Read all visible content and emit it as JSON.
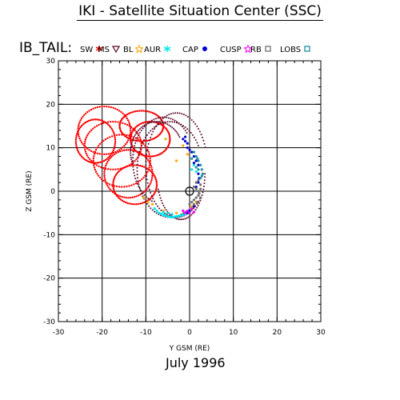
{
  "header": {
    "title": "IKI - Satellite Situation Center (SSC)"
  },
  "plot": {
    "series_label": "IB_TAIL:",
    "period_label": "July    1996"
  },
  "chart_data": {
    "type": "scatter",
    "title": "IKI - Satellite Situation Center (SSC)",
    "xlabel": "Y GSM (RE)",
    "ylabel": "Z GSM (RE)",
    "xlim": [
      -30,
      30
    ],
    "ylim": [
      -30,
      30
    ],
    "xticks": [
      "-30",
      "-20",
      "-10",
      "0",
      "10",
      "20",
      "30"
    ],
    "yticks": [
      "30",
      "20",
      "10",
      "0",
      "-10",
      "-20",
      "-30"
    ],
    "grid": true,
    "legend_placement": "top",
    "legend": [
      {
        "name": "SW",
        "marker": "asterisk",
        "color": "#ff0000"
      },
      {
        "name": "MS",
        "marker": "triangle-down",
        "color": "#5a0a2a"
      },
      {
        "name": "BL",
        "marker": "star-open",
        "color": "#ffa500"
      },
      {
        "name": "AUR",
        "marker": "asterisk",
        "color": "#00e5ee"
      },
      {
        "name": "CAP",
        "marker": "dot",
        "color": "#0000cd"
      },
      {
        "name": "CUSP",
        "marker": "star-open",
        "color": "#ff00ff"
      },
      {
        "name": "RB",
        "marker": "square-open",
        "color": "#707070"
      },
      {
        "name": "LOBS",
        "marker": "square-open",
        "color": "#1e90a0"
      }
    ],
    "earth_marker": {
      "x": 0,
      "y": 0
    },
    "orbit_model": {
      "SW": {
        "color": "#ff0000",
        "loops": [
          {
            "c": [
              -19.5,
              14.0
            ],
            "r": [
              6.0,
              5.5
            ]
          },
          {
            "c": [
              -17.5,
              10.5
            ],
            "r": [
              6.5,
              5.5
            ]
          },
          {
            "c": [
              -15.5,
              7.0
            ],
            "r": [
              6.5,
              6.0
            ]
          },
          {
            "c": [
              -14.0,
              4.0
            ],
            "r": [
              5.5,
              5.5
            ]
          },
          {
            "c": [
              -12.5,
              1.5
            ],
            "r": [
              5.0,
              4.5
            ]
          },
          {
            "c": [
              -21.5,
              11.5
            ],
            "r": [
              4.5,
              5.0
            ]
          },
          {
            "c": [
              -11.0,
              15.0
            ],
            "r": [
              5.0,
              3.5
            ]
          },
          {
            "c": [
              -9.0,
              12.0
            ],
            "r": [
              4.5,
              4.0
            ]
          }
        ]
      },
      "MS": {
        "color": "#5a0a2a",
        "arcs": [
          {
            "c": [
              -3.0,
              6.0
            ],
            "r": [
              7.0,
              12.0
            ],
            "a": [
              20,
              320
            ]
          },
          {
            "c": [
              -4.5,
              5.0
            ],
            "r": [
              7.5,
              11.0
            ],
            "a": [
              30,
              300
            ]
          },
          {
            "c": [
              -6.0,
              7.0
            ],
            "r": [
              7.0,
              10.0
            ],
            "a": [
              40,
              250
            ]
          },
          {
            "c": [
              -2.0,
              4.0
            ],
            "r": [
              5.5,
              10.5
            ],
            "a": [
              200,
              360
            ]
          },
          {
            "c": [
              -7.5,
              9.0
            ],
            "r": [
              6.0,
              7.0
            ],
            "a": [
              30,
              200
            ]
          }
        ]
      },
      "BL": {
        "color": "#ffa500",
        "points": [
          [
            -5.5,
            12.0
          ],
          [
            -1.5,
            10.5
          ],
          [
            -0.5,
            8.5
          ],
          [
            -3.0,
            7.0
          ],
          [
            -9.5,
            -2.5
          ],
          [
            -8.5,
            -3.0
          ],
          [
            -6.0,
            -4.5
          ],
          [
            -3.0,
            -5.0
          ],
          [
            0.5,
            -3.5
          ],
          [
            1.5,
            -2.5
          ],
          [
            -10.5,
            -1.5
          ]
        ]
      },
      "AUR": {
        "color": "#00e5ee",
        "points": [
          [
            -8.0,
            -4.0
          ],
          [
            -7.5,
            -4.5
          ],
          [
            -7.0,
            -5.0
          ],
          [
            -6.5,
            -5.2
          ],
          [
            -6.0,
            -5.5
          ],
          [
            -5.5,
            -5.6
          ],
          [
            -5.0,
            -5.8
          ],
          [
            -4.5,
            -5.9
          ],
          [
            -4.0,
            -6.0
          ],
          [
            -3.5,
            -5.9
          ],
          [
            -3.0,
            -5.8
          ],
          [
            -2.5,
            -5.7
          ],
          [
            -2.0,
            -5.6
          ],
          [
            -1.5,
            -5.4
          ],
          [
            -1.0,
            -5.2
          ],
          [
            -0.5,
            -5.0
          ],
          [
            0.0,
            -4.8
          ],
          [
            -5.0,
            -5.0
          ],
          [
            -6.0,
            -4.8
          ],
          [
            -4.0,
            -5.3
          ],
          [
            0.5,
            5.0
          ],
          [
            1.0,
            6.0
          ],
          [
            1.5,
            4.5
          ]
        ]
      },
      "CAP": {
        "color": "#0000cd",
        "points": [
          [
            -1.5,
            12.0
          ],
          [
            -1.0,
            11.5
          ],
          [
            -0.5,
            11.0
          ],
          [
            -0.5,
            10.0
          ],
          [
            0.0,
            9.5
          ],
          [
            0.5,
            9.0
          ],
          [
            -1.0,
            12.5
          ],
          [
            1.0,
            8.0
          ],
          [
            1.5,
            7.0
          ],
          [
            2.0,
            6.0
          ],
          [
            1.0,
            6.5
          ],
          [
            2.0,
            4.0
          ],
          [
            2.2,
            3.0
          ],
          [
            2.0,
            2.0
          ],
          [
            1.5,
            1.0
          ],
          [
            1.0,
            -3.5
          ],
          [
            0.0,
            -4.5
          ],
          [
            -0.5,
            -5.0
          ]
        ]
      },
      "CUSP": {
        "color": "#ff00ff",
        "points": [
          [
            -1.5,
            -4.5
          ],
          [
            -0.5,
            -4.5
          ],
          [
            0.5,
            -4.0
          ],
          [
            1.0,
            -4.8
          ],
          [
            0.0,
            -5.0
          ],
          [
            -1.0,
            -5.0
          ]
        ]
      },
      "RB": {
        "color": "#707070",
        "points": [
          [
            1.0,
            1.0
          ],
          [
            1.5,
            0.5
          ],
          [
            2.0,
            0.0
          ],
          [
            2.2,
            -0.5
          ],
          [
            2.0,
            -1.0
          ],
          [
            1.5,
            -1.5
          ],
          [
            1.0,
            -2.0
          ],
          [
            0.5,
            -2.5
          ],
          [
            1.5,
            2.0
          ],
          [
            2.0,
            2.5
          ],
          [
            2.5,
            1.5
          ],
          [
            2.5,
            -1.5
          ],
          [
            1.8,
            -2.5
          ],
          [
            0.0,
            -3.0
          ],
          [
            1.0,
            -3.0
          ],
          [
            2.5,
            0.5
          ]
        ]
      },
      "LOBS": {
        "color": "#1e90a0",
        "points": [
          [
            1.5,
            8.0
          ],
          [
            2.0,
            7.0
          ],
          [
            2.5,
            6.0
          ],
          [
            2.8,
            5.0
          ],
          [
            3.0,
            4.0
          ],
          [
            2.5,
            3.0
          ],
          [
            1.0,
            9.0
          ],
          [
            0.5,
            7.5
          ],
          [
            1.5,
            5.5
          ],
          [
            2.0,
            5.0
          ],
          [
            2.8,
            3.5
          ],
          [
            1.8,
            7.5
          ]
        ]
      }
    }
  }
}
